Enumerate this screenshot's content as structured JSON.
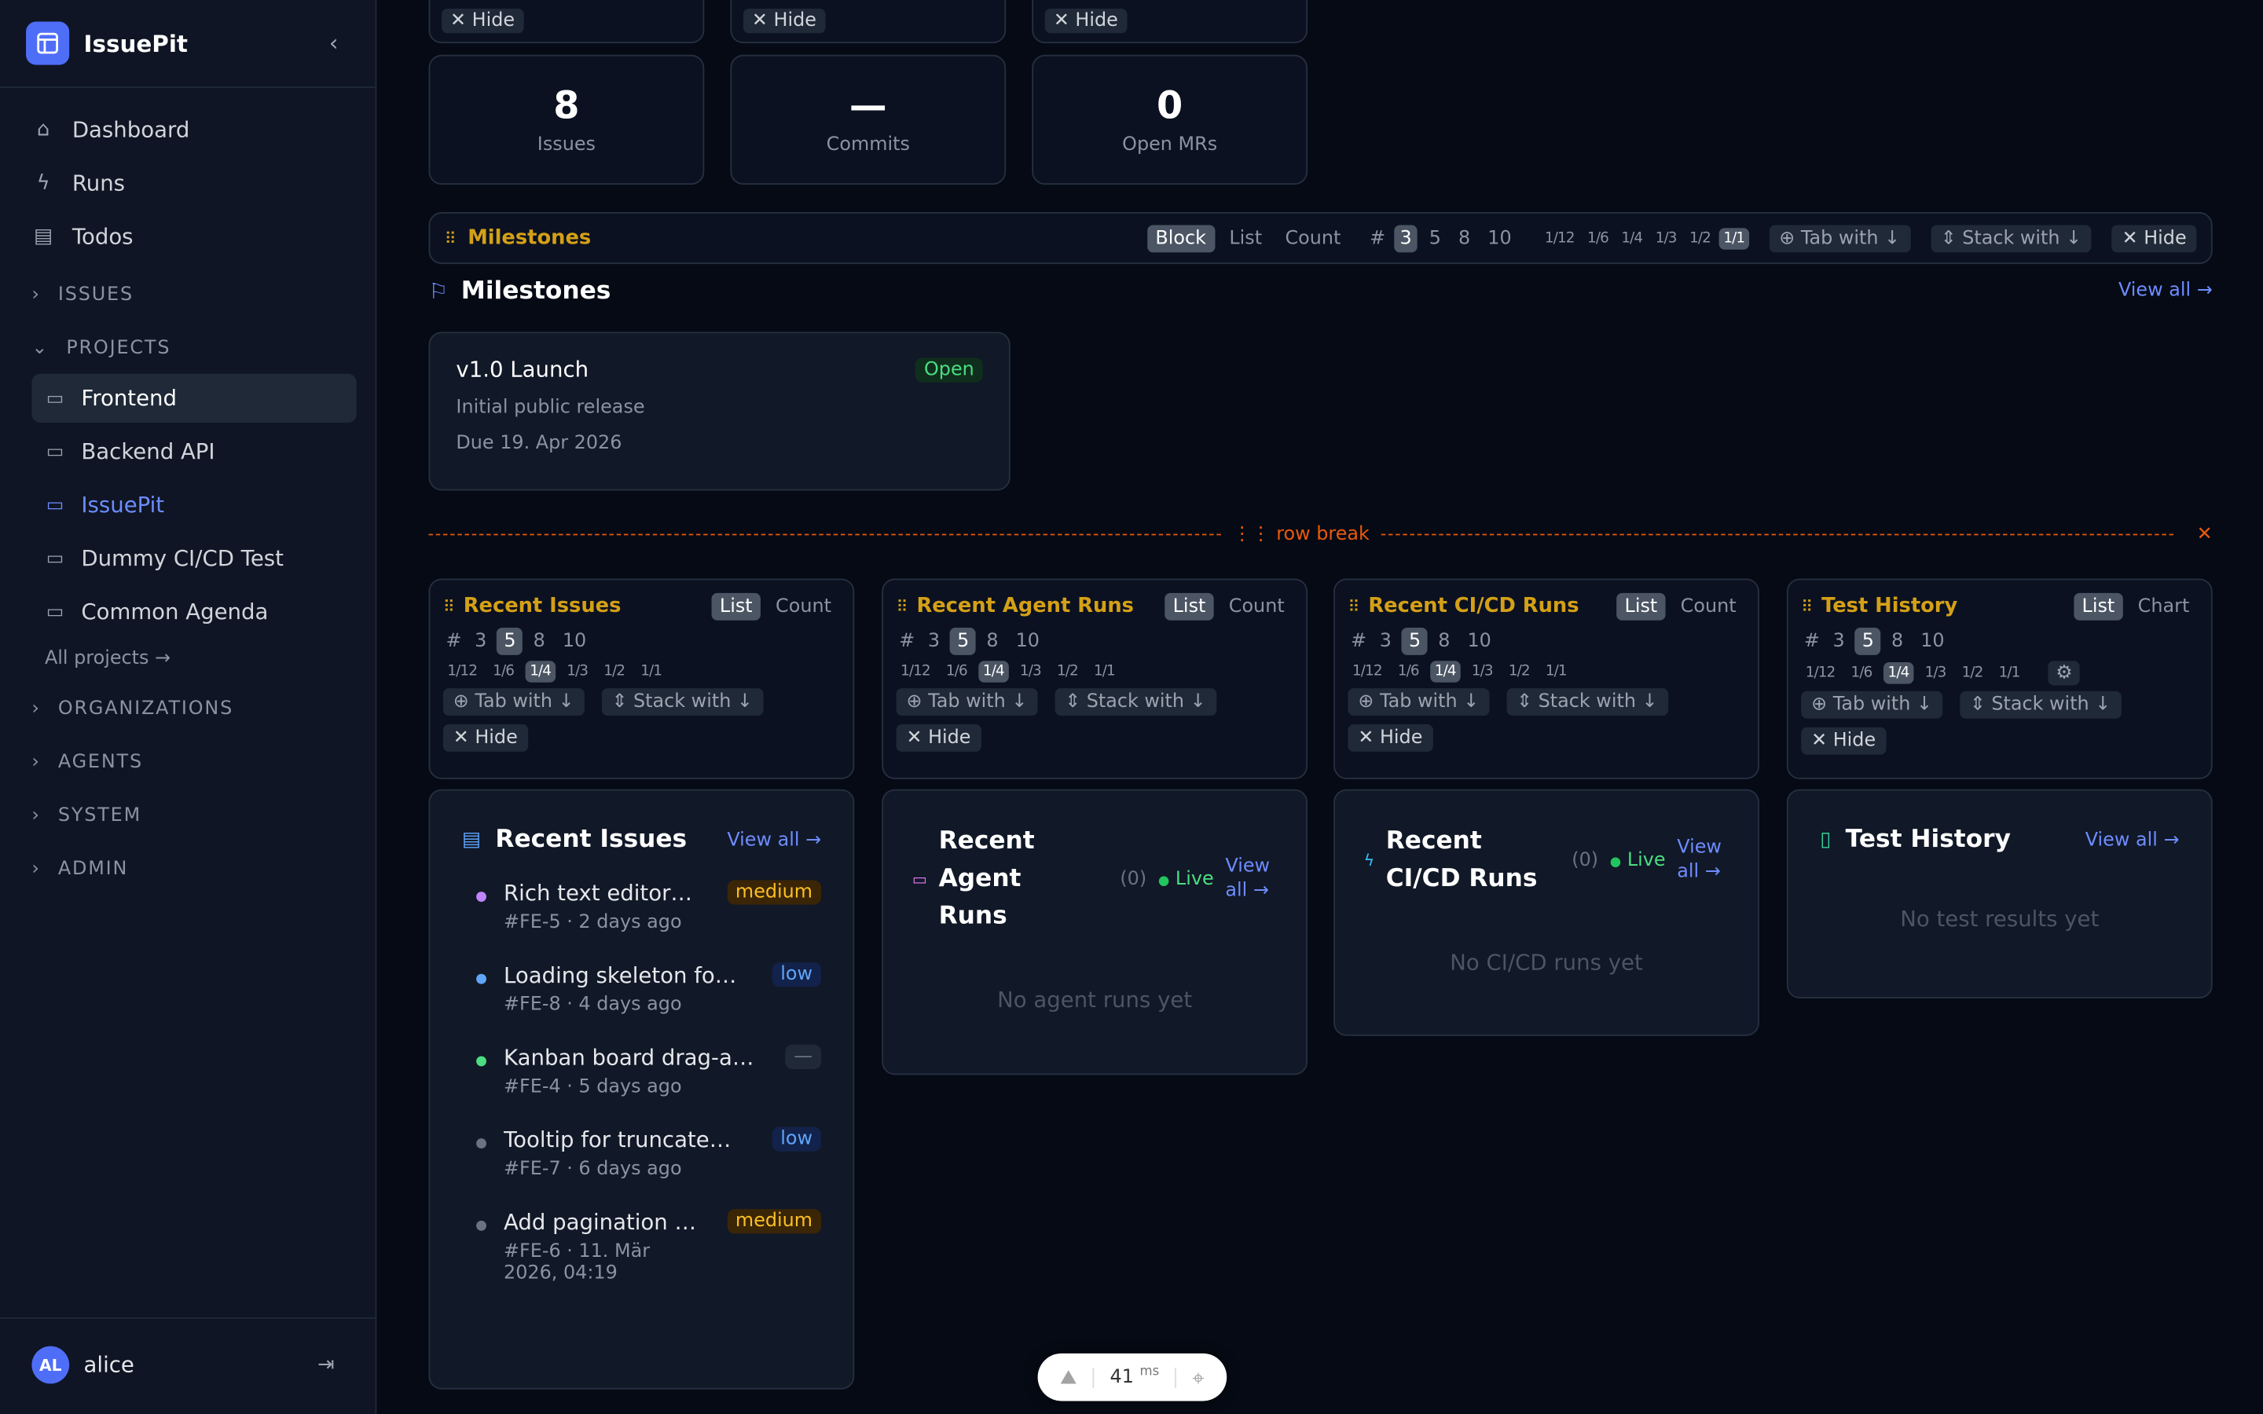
{
  "app": {
    "name": "IssuePit"
  },
  "sidebar": {
    "nav": [
      {
        "label": "Dashboard",
        "icon": "home-icon"
      },
      {
        "label": "Runs",
        "icon": "bolt-icon"
      },
      {
        "label": "Todos",
        "icon": "clipboard-icon"
      }
    ],
    "sections": {
      "issues": "ISSUES",
      "projects": "PROJECTS",
      "organizations": "ORGANIZATIONS",
      "agents": "AGENTS",
      "system": "SYSTEM",
      "admin": "ADMIN"
    },
    "projects": [
      {
        "label": "Frontend",
        "state": "active"
      },
      {
        "label": "Backend API",
        "state": ""
      },
      {
        "label": "IssuePit",
        "state": "highlight"
      },
      {
        "label": "Dummy CI/CD Test",
        "state": ""
      },
      {
        "label": "Common Agenda",
        "state": ""
      }
    ],
    "all_projects": "All projects →",
    "user": {
      "initials": "AL",
      "name": "alice"
    }
  },
  "top": {
    "hide_label": "✕ Hide",
    "stats": [
      {
        "value": "8",
        "label": "Issues"
      },
      {
        "value": "—",
        "label": "Commits"
      },
      {
        "value": "0",
        "label": "Open MRs"
      }
    ]
  },
  "milestones_bar": {
    "title": "Milestones",
    "modes": [
      "Block",
      "List",
      "Count"
    ],
    "active_mode": "Block",
    "hash": "#",
    "counts": [
      "3",
      "5",
      "8",
      "10"
    ],
    "active_count": "3",
    "widths": [
      "1/12",
      "1/6",
      "1/4",
      "1/3",
      "1/2",
      "1/1"
    ],
    "active_width": "1/1",
    "tab_with": "⊕ Tab with ↓",
    "stack_with": "⇕ Stack with ↓",
    "hide": "✕ Hide"
  },
  "milestones": {
    "heading": "Milestones",
    "view_all": "View all →",
    "items": [
      {
        "name": "v1.0 Launch",
        "status": "Open",
        "description": "Initial public release",
        "due": "Due 19. Apr 2026"
      }
    ]
  },
  "row_break": {
    "label": "⋮⋮ row break",
    "close": "✕"
  },
  "config_cards": [
    {
      "title": "Recent Issues",
      "modes": [
        "List",
        "Count"
      ],
      "active_mode": "List",
      "gear": false
    },
    {
      "title": "Recent Agent Runs",
      "modes": [
        "List",
        "Count"
      ],
      "active_mode": "List",
      "gear": false
    },
    {
      "title": "Recent CI/CD Runs",
      "modes": [
        "List",
        "Count"
      ],
      "active_mode": "List",
      "gear": false
    },
    {
      "title": "Test History",
      "modes": [
        "List",
        "Chart"
      ],
      "active_mode": "List",
      "gear": true
    }
  ],
  "config_common": {
    "hash": "#",
    "counts": [
      "3",
      "5",
      "8",
      "10"
    ],
    "active_count": "5",
    "widths": [
      "1/12",
      "1/6",
      "1/4",
      "1/3",
      "1/2",
      "1/1"
    ],
    "active_width": "1/4",
    "tab_with": "⊕ Tab with ↓",
    "stack_with": "⇕ Stack with ↓",
    "hide": "✕ Hide"
  },
  "widgets": {
    "issues": {
      "title": "Recent Issues",
      "view_all": "View all →",
      "items": [
        {
          "title": "Rich text editor…",
          "meta": "#FE-5 · 2 days ago",
          "priority": "medium",
          "dot": "#c084fc"
        },
        {
          "title": "Loading skeleton fo…",
          "meta": "#FE-8 · 4 days ago",
          "priority": "low",
          "dot": "#60a5fa"
        },
        {
          "title": "Kanban board drag-a…",
          "meta": "#FE-4 · 5 days ago",
          "priority": "—",
          "dot": "#4ade80"
        },
        {
          "title": "Tooltip for truncate…",
          "meta": "#FE-7 · 6 days ago",
          "priority": "low",
          "dot": "#6b7280"
        },
        {
          "title": "Add pagination …",
          "meta": "#FE-6 · 11. Mär 2026, 04:19",
          "priority": "medium",
          "dot": "#6b7280"
        }
      ]
    },
    "agent": {
      "title": "Recent Agent Runs",
      "count": "(0)",
      "live": "Live",
      "view_all": "View all →",
      "empty": "No agent runs yet"
    },
    "cicd": {
      "title": "Recent CI/CD Runs",
      "count": "(0)",
      "live": "Live",
      "view_all": "View all →",
      "empty": "No CI/CD runs yet"
    },
    "tests": {
      "title": "Test History",
      "view_all": "View all →",
      "empty": "No test results yet"
    }
  },
  "devbar": {
    "ms_value": "41",
    "ms_unit": "ms"
  },
  "colors": {
    "accent": "#4f6ef7",
    "section_title": "#d4a017",
    "link": "#6d8cff",
    "live": "#4ade80",
    "row_break": "#ea580c"
  }
}
